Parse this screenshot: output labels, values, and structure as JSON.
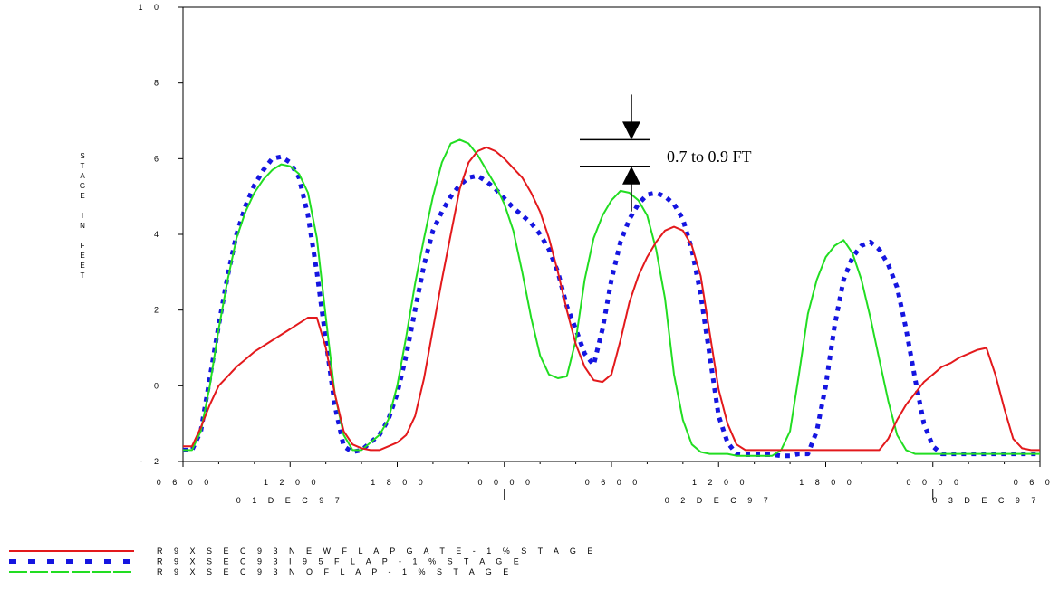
{
  "chart_data": {
    "type": "line",
    "ylabel": "STAGE IN FEET",
    "ylim": [
      -2,
      10
    ],
    "y_ticks": [
      {
        "value": -2,
        "label": "- 2"
      },
      {
        "value": 0,
        "label": "0"
      },
      {
        "value": 2,
        "label": "2"
      },
      {
        "value": 4,
        "label": "4"
      },
      {
        "value": 6,
        "label": "6"
      },
      {
        "value": 8,
        "label": "8"
      },
      {
        "value": 10,
        "label": "1 0"
      }
    ],
    "x_unit": "hours from 01DEC97 0600",
    "xlim": [
      0,
      48
    ],
    "x_ticks": [
      {
        "value": 0,
        "label": "0 6 0 0"
      },
      {
        "value": 6,
        "label": "1 2 0 0"
      },
      {
        "value": 12,
        "label": "1 8 0 0"
      },
      {
        "value": 18,
        "label": "0 0 0 0"
      },
      {
        "value": 24,
        "label": "0 6 0 0"
      },
      {
        "value": 30,
        "label": "1 2 0 0"
      },
      {
        "value": 36,
        "label": "1 8 0 0"
      },
      {
        "value": 42,
        "label": "0 0 0 0"
      },
      {
        "value": 48,
        "label": "0 6 0 0"
      }
    ],
    "date_labels": [
      {
        "value": 6,
        "label": "0 1 D E C 9 7"
      },
      {
        "value": 30,
        "label": "0 2 D E C 9 7"
      },
      {
        "value": 45,
        "label": "0 3 D E C 9 7"
      }
    ],
    "series": [
      {
        "name": "R 9   X S E C 9 3   N E W F L A P G A T E - 1 %   S T A G E",
        "color": "#e3191c",
        "style": "solid",
        "x": [
          0,
          0.5,
          1,
          1.5,
          2,
          2.5,
          3,
          3.5,
          4,
          4.5,
          5,
          5.5,
          6,
          6.5,
          7,
          7.5,
          8,
          8.5,
          9,
          9.5,
          10,
          10.5,
          11,
          11.5,
          12,
          12.5,
          13,
          13.5,
          14,
          14.5,
          15,
          15.5,
          16,
          16.5,
          17,
          17.5,
          18,
          18.5,
          19,
          19.5,
          20,
          20.5,
          21,
          21.5,
          22,
          22.5,
          23,
          23.5,
          24,
          24.5,
          25,
          25.5,
          26,
          26.5,
          27,
          27.5,
          28,
          28.5,
          29,
          29.5,
          30,
          30.5,
          31,
          31.5,
          32,
          32.5,
          33,
          33.5,
          34,
          34.5,
          35,
          35.5,
          36,
          36.5,
          37,
          37.5,
          38,
          38.5,
          39,
          39.5,
          40,
          40.5,
          41,
          41.5,
          42,
          42.5,
          43,
          43.5,
          44,
          44.5,
          45,
          45.5,
          46,
          46.5,
          47,
          47.5,
          48
        ],
        "y": [
          -1.6,
          -1.6,
          -1.1,
          -0.5,
          0.0,
          0.25,
          0.5,
          0.7,
          0.9,
          1.05,
          1.2,
          1.35,
          1.5,
          1.65,
          1.8,
          1.8,
          1.0,
          -0.2,
          -1.2,
          -1.55,
          -1.65,
          -1.7,
          -1.7,
          -1.6,
          -1.5,
          -1.3,
          -0.8,
          0.2,
          1.5,
          2.8,
          4.0,
          5.2,
          5.9,
          6.2,
          6.3,
          6.2,
          6.0,
          5.75,
          5.5,
          5.1,
          4.6,
          3.9,
          3.0,
          2.0,
          1.1,
          0.5,
          0.15,
          0.1,
          0.3,
          1.2,
          2.2,
          2.9,
          3.4,
          3.8,
          4.1,
          4.2,
          4.1,
          3.7,
          2.9,
          1.4,
          -0.1,
          -1.0,
          -1.55,
          -1.7,
          -1.7,
          -1.7,
          -1.7,
          -1.7,
          -1.7,
          -1.7,
          -1.7,
          -1.7,
          -1.7,
          -1.7,
          -1.7,
          -1.7,
          -1.7,
          -1.7,
          -1.7,
          -1.4,
          -0.9,
          -0.5,
          -0.2,
          0.1,
          0.3,
          0.5,
          0.6,
          0.75,
          0.85,
          0.95,
          1.0,
          0.3,
          -0.6,
          -1.4,
          -1.65,
          -1.7,
          -1.7
        ]
      },
      {
        "name": "R 9   X S E C 9 3   I 9 5 F L A P - 1 %   S T A G E",
        "color": "#1515e0",
        "style": "dotted",
        "x": [
          0,
          0.5,
          1,
          1.5,
          2,
          2.5,
          3,
          3.5,
          4,
          4.5,
          5,
          5.5,
          6,
          6.5,
          7,
          7.5,
          8,
          8.5,
          9,
          9.5,
          10,
          10.5,
          11,
          11.5,
          12,
          12.5,
          13,
          13.5,
          14,
          14.5,
          15,
          15.5,
          16,
          16.5,
          17,
          17.5,
          18,
          18.5,
          19,
          19.5,
          20,
          20.5,
          21,
          21.5,
          22,
          22.5,
          23,
          23.5,
          24,
          24.5,
          25,
          25.5,
          26,
          26.5,
          27,
          27.5,
          28,
          28.5,
          29,
          29.5,
          30,
          30.5,
          31,
          31.5,
          32,
          32.5,
          33,
          33.5,
          34,
          34.5,
          35,
          35.5,
          36,
          36.5,
          37,
          37.5,
          38,
          38.5,
          39,
          39.5,
          40,
          40.5,
          41,
          41.5,
          42,
          42.5,
          43,
          43.5,
          44,
          44.5,
          45,
          45.5,
          46,
          46.5,
          47,
          47.5,
          48
        ],
        "y": [
          -1.7,
          -1.7,
          -1.2,
          0.2,
          1.6,
          2.9,
          4.0,
          4.75,
          5.3,
          5.7,
          6.0,
          6.05,
          5.9,
          5.5,
          4.5,
          3.0,
          1.2,
          -0.5,
          -1.6,
          -1.75,
          -1.7,
          -1.5,
          -1.3,
          -0.9,
          -0.2,
          0.8,
          2.0,
          3.2,
          4.1,
          4.6,
          5.0,
          5.3,
          5.5,
          5.55,
          5.4,
          5.2,
          4.95,
          4.7,
          4.5,
          4.3,
          4.0,
          3.6,
          3.0,
          2.1,
          1.5,
          0.85,
          0.55,
          1.5,
          2.8,
          3.8,
          4.4,
          4.8,
          5.05,
          5.1,
          5.0,
          4.8,
          4.4,
          3.6,
          2.4,
          0.8,
          -0.8,
          -1.5,
          -1.8,
          -1.82,
          -1.82,
          -1.82,
          -1.82,
          -1.85,
          -1.85,
          -1.8,
          -1.8,
          -1.2,
          0.0,
          1.6,
          2.8,
          3.4,
          3.7,
          3.8,
          3.6,
          3.2,
          2.6,
          1.5,
          0.2,
          -1.0,
          -1.6,
          -1.8,
          -1.8,
          -1.8,
          -1.8,
          -1.8,
          -1.8,
          -1.8,
          -1.8,
          -1.8,
          -1.8,
          -1.8,
          -1.8
        ]
      },
      {
        "name": "R 9   X S E C 9 3   N O F L A P - 1 %   S T A G E",
        "color": "#22dd22",
        "style": "dashed",
        "x": [
          0,
          0.5,
          1,
          1.5,
          2,
          2.5,
          3,
          3.5,
          4,
          4.5,
          5,
          5.5,
          6,
          6.5,
          7,
          7.5,
          8,
          8.5,
          9,
          9.5,
          10,
          10.5,
          11,
          11.5,
          12,
          12.5,
          13,
          13.5,
          14,
          14.5,
          15,
          15.5,
          16,
          16.5,
          17,
          17.5,
          18,
          18.5,
          19,
          19.5,
          20,
          20.5,
          21,
          21.5,
          22,
          22.5,
          23,
          23.5,
          24,
          24.5,
          25,
          25.5,
          26,
          26.5,
          27,
          27.5,
          28,
          28.5,
          29,
          29.5,
          30,
          30.5,
          31,
          31.5,
          32,
          32.5,
          33,
          33.5,
          34,
          34.5,
          35,
          35.5,
          36,
          36.5,
          37,
          37.5,
          38,
          38.5,
          39,
          39.5,
          40,
          40.5,
          41,
          41.5,
          42,
          42.5,
          43,
          43.5,
          44,
          44.5,
          45,
          45.5,
          46,
          46.5,
          47,
          47.5,
          48
        ],
        "y": [
          -1.7,
          -1.7,
          -1.2,
          0.0,
          1.5,
          2.8,
          3.9,
          4.6,
          5.1,
          5.45,
          5.7,
          5.85,
          5.8,
          5.6,
          5.1,
          3.9,
          1.8,
          -0.2,
          -1.3,
          -1.7,
          -1.7,
          -1.5,
          -1.3,
          -0.9,
          0.0,
          1.3,
          2.7,
          3.9,
          5.0,
          5.9,
          6.4,
          6.5,
          6.4,
          6.1,
          5.7,
          5.3,
          4.8,
          4.1,
          3.0,
          1.8,
          0.8,
          0.3,
          0.2,
          0.25,
          1.2,
          2.8,
          3.9,
          4.5,
          4.9,
          5.15,
          5.1,
          4.9,
          4.5,
          3.6,
          2.3,
          0.3,
          -0.9,
          -1.55,
          -1.75,
          -1.8,
          -1.8,
          -1.8,
          -1.85,
          -1.85,
          -1.85,
          -1.85,
          -1.85,
          -1.7,
          -1.2,
          0.3,
          1.9,
          2.8,
          3.4,
          3.7,
          3.85,
          3.5,
          2.8,
          1.8,
          0.7,
          -0.4,
          -1.3,
          -1.7,
          -1.8,
          -1.8,
          -1.8,
          -1.8,
          -1.8,
          -1.8,
          -1.8,
          -1.8,
          -1.8,
          -1.8,
          -1.8,
          -1.8,
          -1.8,
          -1.8,
          -1.8
        ]
      }
    ],
    "annotation": {
      "text": "0.7 to 0.9 FT",
      "upper_value": 6.5,
      "lower_value": 5.8,
      "at_x": 25
    }
  }
}
